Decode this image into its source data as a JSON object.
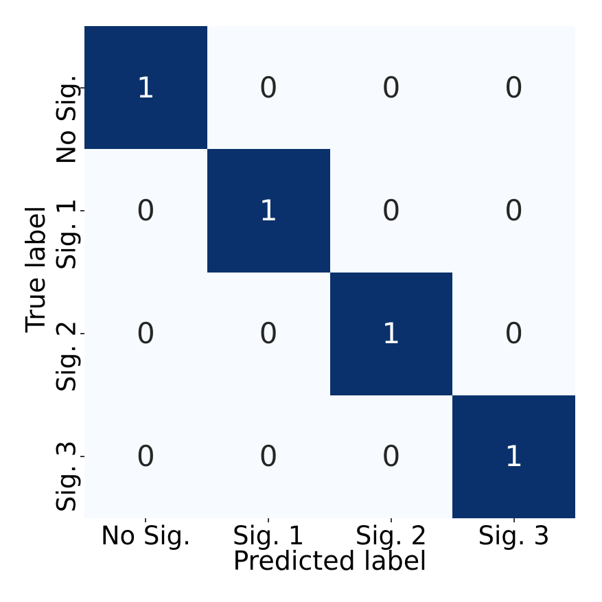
{
  "colors": {
    "high_cell": "#0a316b",
    "low_cell": "#f7fbff",
    "annot_on_high": "#ffffff",
    "annot_on_low": "#262626",
    "axis_text": "#000000",
    "tick": "#3a3a3a"
  },
  "chart_data": {
    "type": "heatmap",
    "subtype": "confusion-matrix",
    "title": "",
    "xlabel": "Predicted label",
    "ylabel": "True label",
    "x_ticklabels": [
      "No Sig.",
      "Sig. 1",
      "Sig. 2",
      "Sig. 3"
    ],
    "y_ticklabels": [
      "No Sig.",
      "Sig. 1",
      "Sig. 2",
      "Sig. 3"
    ],
    "matrix": [
      [
        1,
        0,
        0,
        0
      ],
      [
        0,
        1,
        0,
        0
      ],
      [
        0,
        0,
        1,
        0
      ],
      [
        0,
        0,
        0,
        1
      ]
    ],
    "colormap": "Blues",
    "vmin": 0,
    "vmax": 1,
    "legend": "none",
    "grid": false
  }
}
